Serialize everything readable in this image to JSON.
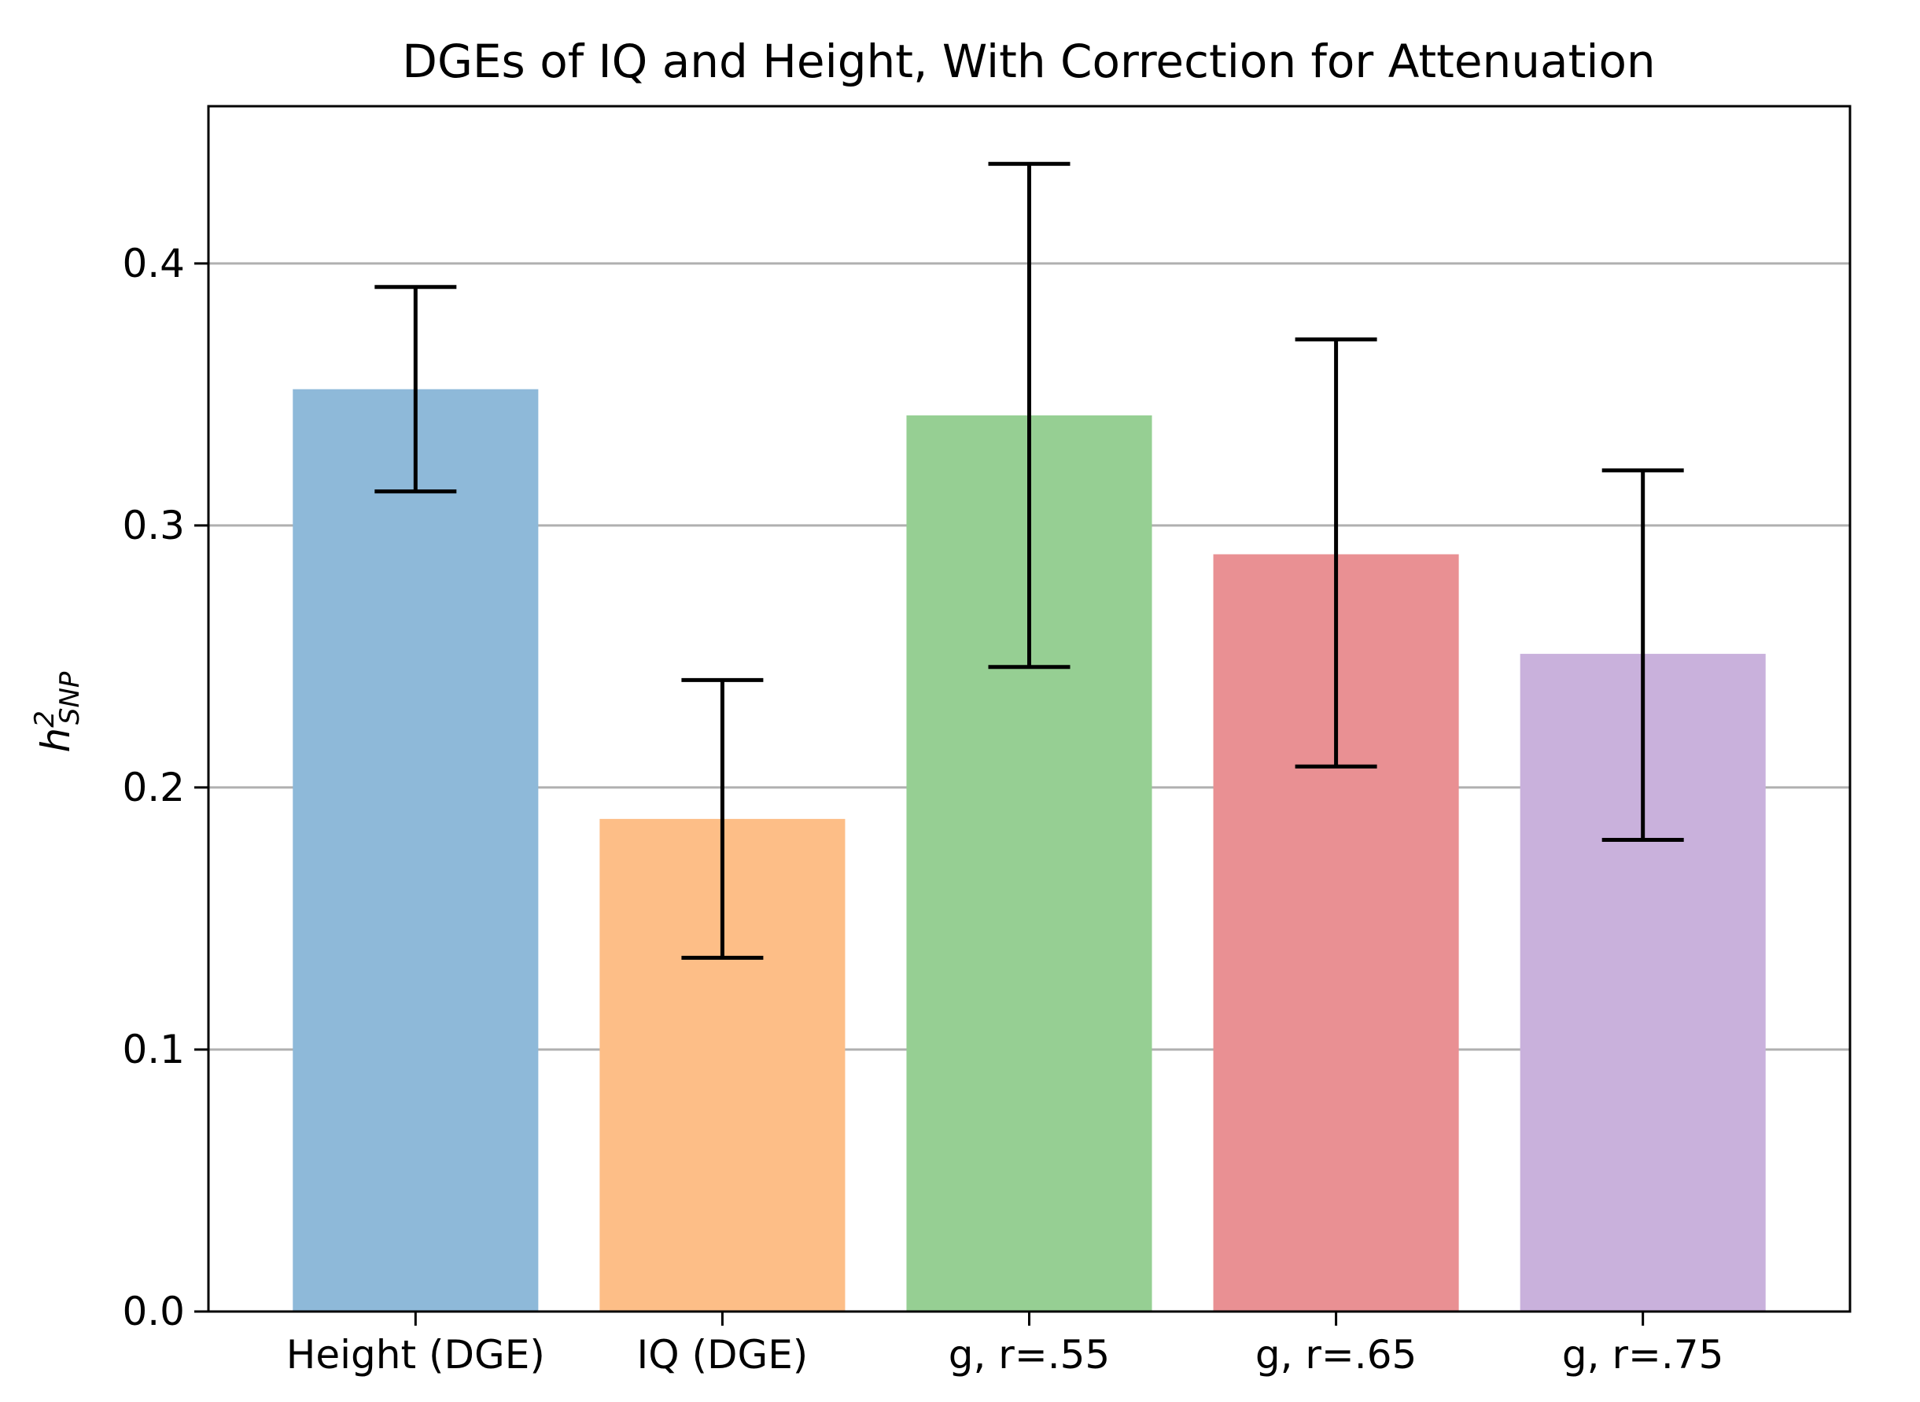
{
  "chart_data": {
    "type": "bar",
    "title": "DGEs of IQ and Height, With Correction for Attenuation",
    "xlabel": "",
    "ylabel": {
      "base": "h",
      "sup": "2",
      "sub": "SNP"
    },
    "ylim": [
      0,
      0.46
    ],
    "yticks": [
      "0.0",
      "0.1",
      "0.2",
      "0.3",
      "0.4"
    ],
    "ytick_values": [
      0,
      0.1,
      0.2,
      0.3,
      0.4
    ],
    "grid": "y-major",
    "categories": [
      "Height (DGE)",
      "IQ (DGE)",
      "g, r=.55",
      "g, r=.65",
      "g, r=.75"
    ],
    "values": [
      0.352,
      0.188,
      0.342,
      0.289,
      0.251
    ],
    "error_low": [
      0.313,
      0.135,
      0.246,
      0.208,
      0.18
    ],
    "error_high": [
      0.391,
      0.241,
      0.438,
      0.371,
      0.321
    ],
    "colors": [
      "#8eb9d9",
      "#fdbe87",
      "#96cf93",
      "#e99093",
      "#c9b1dc"
    ],
    "error_color": "#000000",
    "grid_color": "#b0b0b0"
  }
}
